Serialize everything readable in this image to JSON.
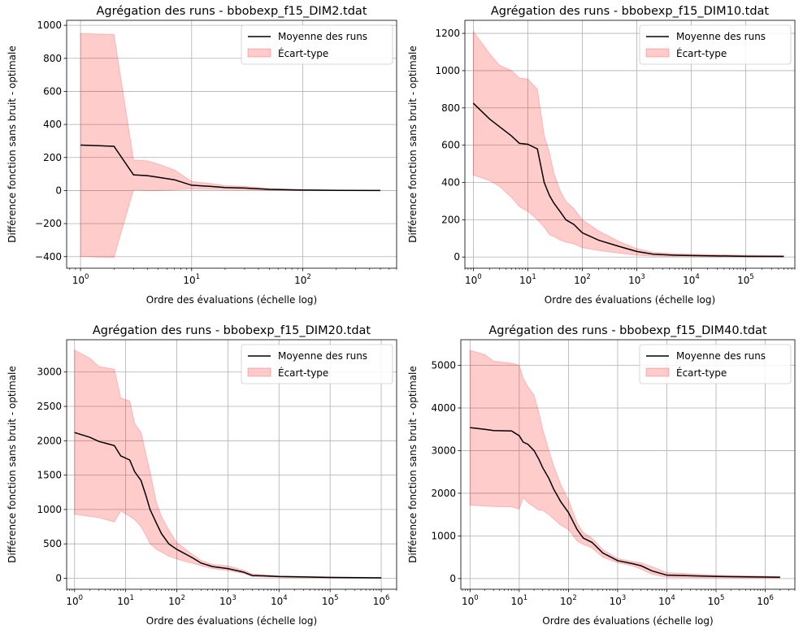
{
  "chart_data": [
    {
      "type": "line",
      "title": "Agrégation des runs - bbobexp_f15_DIM2.tdat",
      "xlabel": "Ordre des évaluations (échelle log)",
      "ylabel": "Différence fonction sans bruit - optimale",
      "xscale": "log",
      "xlim": [
        0.75,
        700
      ],
      "ylim": [
        -470,
        1030
      ],
      "yticks": [
        -400,
        -200,
        0,
        200,
        400,
        600,
        800,
        1000
      ],
      "xtick_exponents": [
        0,
        1,
        2
      ],
      "grid": true,
      "legend_position": "top-right",
      "legend": [
        "Moyenne des runs",
        "Écart-type"
      ],
      "series": [
        {
          "name": "Moyenne des runs",
          "x": [
            1,
            2,
            3,
            4,
            5,
            7,
            10,
            15,
            20,
            30,
            50,
            100,
            200,
            500
          ],
          "y": [
            275,
            268,
            95,
            90,
            80,
            65,
            32,
            25,
            18,
            15,
            7,
            3,
            1,
            0
          ]
        },
        {
          "name": "Écart-type",
          "x": [
            1,
            2,
            3,
            4,
            5,
            7,
            10,
            15,
            20,
            30,
            50,
            100,
            200,
            500
          ],
          "upper": [
            950,
            945,
            185,
            180,
            160,
            125,
            55,
            42,
            30,
            25,
            12,
            6,
            3,
            1
          ],
          "lower": [
            -400,
            -405,
            5,
            0,
            0,
            5,
            10,
            8,
            6,
            5,
            2,
            0,
            0,
            0
          ]
        }
      ]
    },
    {
      "type": "line",
      "title": "Agrégation des runs - bbobexp_f15_DIM10.tdat",
      "xlabel": "Ordre des évaluations (échelle log)",
      "ylabel": "Différence fonction sans bruit - optimale",
      "xscale": "log",
      "xlim": [
        0.7,
        800000
      ],
      "ylim": [
        -60,
        1270
      ],
      "yticks": [
        0,
        200,
        400,
        600,
        800,
        1000,
        1200
      ],
      "xtick_exponents": [
        0,
        1,
        2,
        3,
        4,
        5
      ],
      "grid": true,
      "legend_position": "top-right",
      "legend": [
        "Moyenne des runs",
        "Écart-type"
      ],
      "series": [
        {
          "name": "Moyenne des runs",
          "x": [
            1,
            2,
            3,
            5,
            7,
            10,
            15,
            20,
            25,
            30,
            40,
            50,
            70,
            100,
            200,
            500,
            1000,
            2000,
            5000,
            10000,
            100000,
            500000
          ],
          "y": [
            825,
            740,
            700,
            650,
            610,
            605,
            580,
            400,
            330,
            290,
            240,
            200,
            175,
            130,
            90,
            55,
            30,
            15,
            10,
            8,
            4,
            3
          ]
        },
        {
          "name": "Écart-type",
          "x": [
            1,
            2,
            3,
            5,
            7,
            10,
            15,
            20,
            25,
            30,
            40,
            50,
            70,
            100,
            200,
            500,
            1000,
            2000,
            5000,
            10000,
            100000,
            500000
          ],
          "upper": [
            1210,
            1090,
            1030,
            1000,
            960,
            955,
            900,
            650,
            560,
            450,
            350,
            300,
            260,
            200,
            140,
            80,
            45,
            25,
            18,
            15,
            10,
            8
          ],
          "lower": [
            440,
            410,
            380,
            320,
            270,
            245,
            200,
            160,
            120,
            110,
            90,
            80,
            70,
            50,
            35,
            20,
            10,
            5,
            3,
            2,
            0,
            0
          ]
        }
      ]
    },
    {
      "type": "line",
      "title": "Agrégation des runs - bbobexp_f15_DIM20.tdat",
      "xlabel": "Ordre des évaluations (échelle log)",
      "ylabel": "Différence fonction sans bruit - optimale",
      "xscale": "log",
      "xlim": [
        0.7,
        2000000
      ],
      "ylim": [
        -160,
        3470
      ],
      "yticks": [
        0,
        500,
        1000,
        1500,
        2000,
        2500,
        3000
      ],
      "xtick_exponents": [
        0,
        1,
        2,
        3,
        4,
        5,
        6
      ],
      "grid": true,
      "legend_position": "top-right",
      "legend": [
        "Moyenne des runs",
        "Écart-type"
      ],
      "series": [
        {
          "name": "Moyenne des runs",
          "x": [
            1,
            2,
            3,
            6,
            8,
            12,
            15,
            20,
            25,
            30,
            40,
            50,
            70,
            100,
            150,
            200,
            300,
            500,
            1000,
            2000,
            3000,
            5000,
            10000,
            100000,
            1000000
          ],
          "y": [
            2120,
            2050,
            1990,
            1930,
            1780,
            1720,
            1550,
            1420,
            1200,
            1000,
            800,
            650,
            500,
            420,
            350,
            300,
            220,
            170,
            140,
            90,
            40,
            35,
            25,
            12,
            5
          ]
        },
        {
          "name": "Écart-type",
          "x": [
            1,
            2,
            3,
            6,
            8,
            12,
            15,
            20,
            25,
            30,
            40,
            50,
            70,
            100,
            150,
            200,
            300,
            500,
            1000,
            2000,
            3000,
            5000,
            10000,
            100000,
            1000000
          ],
          "upper": [
            3320,
            3200,
            3080,
            3040,
            2620,
            2580,
            2250,
            2120,
            1800,
            1550,
            1100,
            900,
            700,
            520,
            420,
            350,
            260,
            200,
            180,
            120,
            60,
            50,
            35,
            20,
            10
          ],
          "lower": [
            930,
            900,
            880,
            820,
            980,
            900,
            850,
            750,
            620,
            500,
            420,
            380,
            320,
            280,
            240,
            220,
            180,
            140,
            110,
            70,
            25,
            20,
            15,
            5,
            2
          ]
        }
      ]
    },
    {
      "type": "line",
      "title": "Agrégation des runs - bbobexp_f15_DIM40.tdat",
      "xlabel": "Ordre des évaluations (échelle log)",
      "ylabel": "Différence fonction sans bruit - optimale",
      "xscale": "log",
      "xlim": [
        0.65,
        4000000
      ],
      "ylim": [
        -250,
        5600
      ],
      "yticks": [
        0,
        1000,
        2000,
        3000,
        4000,
        5000
      ],
      "xtick_exponents": [
        0,
        1,
        2,
        3,
        4,
        5,
        6
      ],
      "grid": true,
      "legend_position": "top-right",
      "legend": [
        "Moyenne des runs",
        "Écart-type"
      ],
      "series": [
        {
          "name": "Moyenne des runs",
          "x": [
            1,
            2,
            3,
            7,
            10,
            12,
            15,
            20,
            25,
            30,
            40,
            50,
            70,
            100,
            150,
            200,
            300,
            500,
            1000,
            2000,
            3000,
            5000,
            10000,
            100000,
            2000000
          ],
          "y": [
            3540,
            3500,
            3470,
            3460,
            3350,
            3200,
            3150,
            3000,
            2800,
            2600,
            2350,
            2100,
            1800,
            1550,
            1150,
            950,
            850,
            600,
            420,
            350,
            300,
            180,
            80,
            50,
            30
          ]
        },
        {
          "name": "Écart-type",
          "x": [
            1,
            2,
            3,
            7,
            10,
            12,
            15,
            20,
            25,
            30,
            40,
            50,
            70,
            100,
            150,
            200,
            300,
            500,
            1000,
            2000,
            3000,
            5000,
            10000,
            100000,
            2000000
          ],
          "upper": [
            5350,
            5250,
            5100,
            5050,
            5000,
            4700,
            4500,
            4300,
            3900,
            3500,
            3000,
            2650,
            2200,
            1850,
            1300,
            1080,
            950,
            680,
            470,
            400,
            370,
            280,
            140,
            80,
            50
          ],
          "lower": [
            1720,
            1700,
            1690,
            1680,
            1630,
            1900,
            1780,
            1680,
            1600,
            1600,
            1500,
            1400,
            1250,
            1150,
            880,
            800,
            720,
            500,
            370,
            300,
            220,
            100,
            30,
            20,
            10
          ]
        }
      ]
    }
  ]
}
